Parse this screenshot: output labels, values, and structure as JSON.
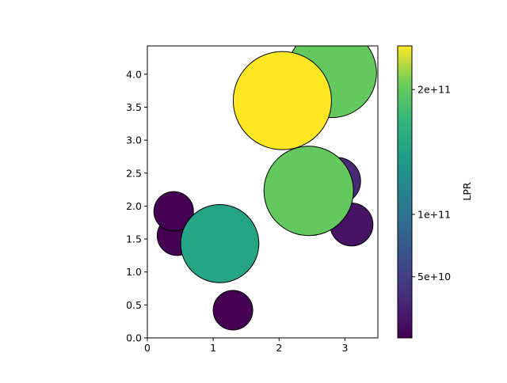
{
  "chart_data": {
    "type": "scatter",
    "xlim": [
      0,
      3.5
    ],
    "ylim": [
      0,
      4.43
    ],
    "x_ticks": [
      {
        "value": 0,
        "label": "0"
      },
      {
        "value": 1,
        "label": "1"
      },
      {
        "value": 2,
        "label": "2"
      },
      {
        "value": 3,
        "label": "3"
      }
    ],
    "y_ticks": [
      {
        "value": 0.0,
        "label": "0.0"
      },
      {
        "value": 0.5,
        "label": "0.5"
      },
      {
        "value": 1.0,
        "label": "1.0"
      },
      {
        "value": 1.5,
        "label": "1.5"
      },
      {
        "value": 2.0,
        "label": "2.0"
      },
      {
        "value": 2.5,
        "label": "2.5"
      },
      {
        "value": 3.0,
        "label": "3.0"
      },
      {
        "value": 3.5,
        "label": "3.5"
      },
      {
        "value": 4.0,
        "label": "4.0"
      }
    ],
    "grid": false,
    "points": [
      {
        "x": 0.45,
        "y": 1.55,
        "lpr": 1000000000.0
      },
      {
        "x": 1.3,
        "y": 0.42,
        "lpr": 1000000000.0
      },
      {
        "x": 0.4,
        "y": 1.92,
        "lpr": 1000000000.0
      },
      {
        "x": 3.1,
        "y": 1.72,
        "lpr": 14000000000.0
      },
      {
        "x": 2.88,
        "y": 2.38,
        "lpr": 31000000000.0
      },
      {
        "x": 1.1,
        "y": 1.43,
        "lpr": 155000000000.0
      },
      {
        "x": 2.45,
        "y": 2.23,
        "lpr": 200000000000.0
      },
      {
        "x": 2.8,
        "y": 4.02,
        "lpr": 200000000000.0
      },
      {
        "x": 2.05,
        "y": 3.6,
        "lpr": 235000000000.0
      }
    ],
    "colorbar": {
      "label": "LPR",
      "range": [
        1000000000.0,
        235000000000.0
      ],
      "colormap": "viridis",
      "ticks": [
        {
          "value": 50000000000.0,
          "label": "5e+10"
        },
        {
          "value": 100000000000.0,
          "label": "1e+11"
        },
        {
          "value": 200000000000.0,
          "label": "2e+11"
        }
      ]
    },
    "marker_edge_color": "#000000"
  }
}
